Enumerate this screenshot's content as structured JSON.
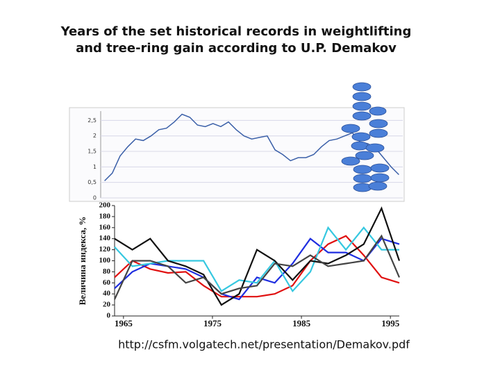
{
  "header": {
    "title": [
      "Years of the set historical records in weightlifting",
      "and tree-ring gain according to U.P. Demakov"
    ]
  },
  "source": "http://csfm.volgatech.net/presentation/Demakov.pdf",
  "chart_data": [
    {
      "type": "line",
      "x": [
        1961,
        1962,
        1963,
        1964,
        1965,
        1966,
        1967,
        1968,
        1969,
        1970,
        1971,
        1972,
        1973,
        1974,
        1975,
        1976,
        1977,
        1978,
        1979,
        1980,
        1981,
        1982,
        1983,
        1984,
        1985,
        1986,
        1987,
        1988,
        1989,
        1990,
        1991,
        1992,
        1993,
        1994,
        1995,
        1996,
        1997,
        1998,
        1999
      ],
      "values": [
        0.55,
        0.8,
        1.35,
        1.65,
        1.9,
        1.85,
        2.0,
        2.2,
        2.25,
        2.45,
        2.7,
        2.6,
        2.35,
        2.3,
        2.4,
        2.3,
        2.45,
        2.2,
        2.0,
        1.9,
        1.95,
        2.0,
        1.55,
        1.4,
        1.2,
        1.3,
        1.3,
        1.4,
        1.65,
        1.85,
        1.9,
        2.0,
        2.1,
        1.8,
        1.75,
        1.6,
        1.3,
        1.0,
        0.75
      ],
      "color": "#3a5fa8",
      "xlim": [
        1960.5,
        1999.5
      ],
      "ylim": [
        0,
        2.8
      ],
      "yticks": [
        0,
        {
          "value": 0.5,
          "label": "0,5"
        },
        1,
        {
          "value": 1.5,
          "label": "1,5"
        },
        2,
        {
          "value": 2.5,
          "label": "2,5"
        }
      ],
      "grid": true
    },
    {
      "type": "line",
      "y_label": "Величина индекса, %",
      "x": [
        1964,
        1966,
        1968,
        1970,
        1972,
        1974,
        1976,
        1978,
        1980,
        1982,
        1984,
        1986,
        1988,
        1990,
        1992,
        1994,
        1996
      ],
      "series": [
        {
          "color": "#e01010",
          "values": [
            70,
            100,
            85,
            78,
            80,
            55,
            35,
            35,
            35,
            40,
            55,
            100,
            130,
            145,
            110,
            70,
            60
          ]
        },
        {
          "color": "#1f2ee0",
          "values": [
            50,
            80,
            95,
            90,
            85,
            70,
            40,
            30,
            70,
            60,
            95,
            140,
            115,
            115,
            100,
            140,
            130
          ]
        },
        {
          "color": "#36c8e0",
          "values": [
            125,
            90,
            95,
            100,
            100,
            100,
            45,
            65,
            60,
            100,
            45,
            80,
            160,
            120,
            160,
            120,
            120
          ]
        },
        {
          "color": "#111111",
          "values": [
            140,
            120,
            140,
            100,
            90,
            75,
            20,
            40,
            120,
            100,
            65,
            100,
            95,
            110,
            130,
            195,
            100
          ]
        },
        {
          "color": "#444444",
          "values": [
            30,
            100,
            100,
            90,
            60,
            70,
            40,
            50,
            55,
            95,
            90,
            110,
            90,
            95,
            100,
            145,
            70
          ]
        }
      ],
      "xlim": [
        1964,
        1996
      ],
      "xticks": [
        1965,
        1975,
        1985,
        1995
      ],
      "ylim": [
        0,
        200
      ],
      "yticks": [
        0,
        20,
        40,
        60,
        80,
        100,
        120,
        140,
        160,
        180,
        200
      ]
    }
  ]
}
